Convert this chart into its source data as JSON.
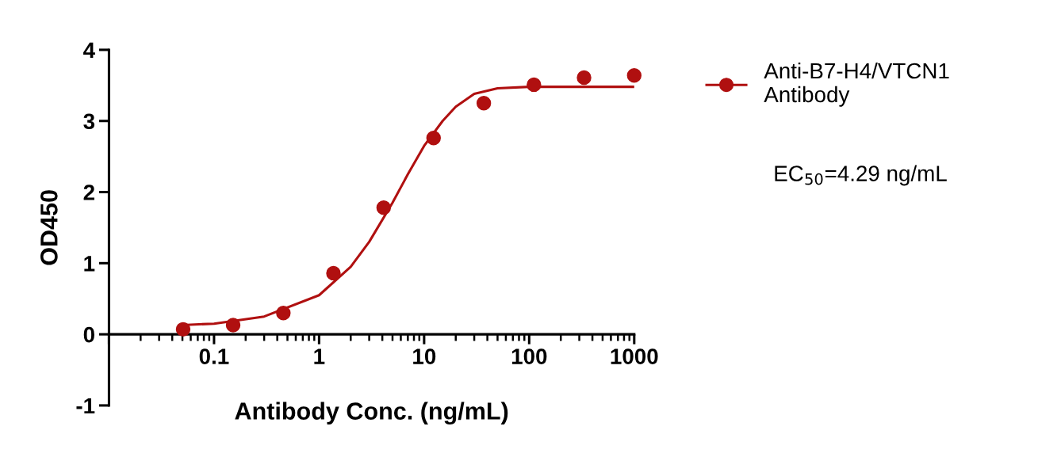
{
  "chart_data": {
    "type": "scatter",
    "xlabel": "Antibody Conc. (ng/mL)",
    "ylabel": "OD450",
    "log": "x",
    "xlim": [
      0.01,
      1000
    ],
    "xticks": [
      {
        "value": 0.01,
        "label": null
      },
      0.1,
      1,
      10,
      100,
      1000
    ],
    "ylim": [
      -1,
      4
    ],
    "yticks": [
      -1,
      0,
      1,
      2,
      3,
      4
    ],
    "grid": false,
    "legend": "right",
    "annotations": [
      "EC$_{50}$=4.29 ng/mL"
    ],
    "series": [
      {
        "name": "Anti-B7-H4/VTCN1\nAntibody",
        "marker": "circle",
        "color": "#b01010",
        "x": [
          0.0508,
          0.152,
          0.457,
          1.37,
          4.12,
          12.3,
          37,
          111,
          333,
          1000
        ],
        "values": [
          0.07,
          0.13,
          0.3,
          0.86,
          1.78,
          2.76,
          3.25,
          3.51,
          3.61,
          3.64
        ]
      },
      {
        "type": "line",
        "marker": "none",
        "color": "#b01010",
        "line_style": "solid",
        "x": [
          0.05,
          0.1,
          0.3,
          1,
          2,
          3,
          5,
          7,
          10,
          15,
          20,
          30,
          50,
          100,
          1000
        ],
        "values": [
          0.13,
          0.15,
          0.25,
          0.55,
          0.95,
          1.3,
          1.85,
          2.25,
          2.65,
          3.0,
          3.2,
          3.38,
          3.46,
          3.48,
          3.48
        ]
      }
    ]
  }
}
